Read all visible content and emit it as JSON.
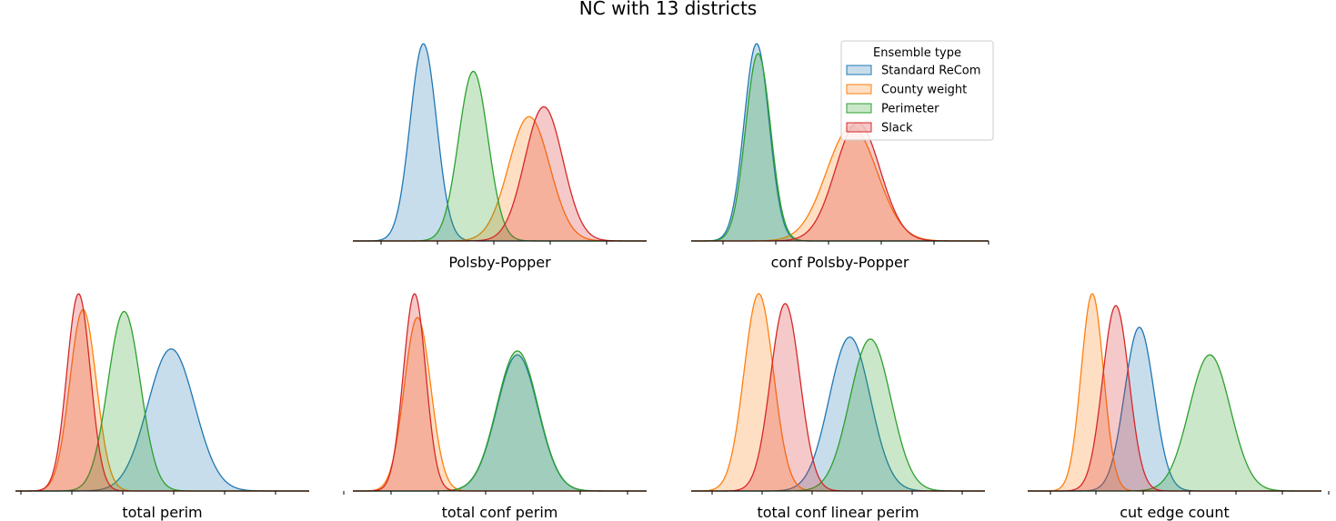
{
  "figure": {
    "title": "NC with 13 districts"
  },
  "legend": {
    "title": "Ensemble type",
    "entries": [
      "Standard ReCom",
      "County weight",
      "Perimeter",
      "Slack"
    ],
    "placement": "top-right of conf Polsby-Popper panel"
  },
  "colors": {
    "Standard ReCom": "#1f77b4",
    "County weight": "#ff7f0e",
    "Perimeter": "#2ca02c",
    "Slack": "#d62728"
  },
  "chart_data": [
    {
      "type": "area",
      "kind": "kde",
      "xlabel": "Polsby-Popper",
      "xlim": [
        0,
        1
      ],
      "yticks": "none",
      "xticklabels": "none",
      "series": [
        {
          "name": "Standard ReCom",
          "peaks": [
            {
              "mu": 0.24,
              "sigma": 0.045,
              "amp": 1.0
            }
          ]
        },
        {
          "name": "Perimeter",
          "peaks": [
            {
              "mu": 0.41,
              "sigma": 0.05,
              "amp": 0.86
            }
          ]
        },
        {
          "name": "County weight",
          "peaks": [
            {
              "mu": 0.6,
              "sigma": 0.07,
              "amp": 0.63
            }
          ]
        },
        {
          "name": "Slack",
          "peaks": [
            {
              "mu": 0.65,
              "sigma": 0.065,
              "amp": 0.68
            }
          ]
        }
      ]
    },
    {
      "type": "area",
      "kind": "kde",
      "xlabel": "conf Polsby-Popper",
      "xlim": [
        0,
        1
      ],
      "yticks": "none",
      "xticklabels": "none",
      "series": [
        {
          "name": "Standard ReCom",
          "peaks": [
            {
              "mu": 0.22,
              "sigma": 0.042,
              "amp": 1.0
            }
          ]
        },
        {
          "name": "Perimeter",
          "peaks": [
            {
              "mu": 0.225,
              "sigma": 0.042,
              "amp": 0.95
            }
          ]
        },
        {
          "name": "County weight",
          "peaks": [
            {
              "mu": 0.54,
              "sigma": 0.085,
              "amp": 0.58
            }
          ]
        },
        {
          "name": "Slack",
          "peaks": [
            {
              "mu": 0.56,
              "sigma": 0.075,
              "amp": 0.6
            }
          ]
        }
      ]
    },
    {
      "type": "area",
      "kind": "kde",
      "xlabel": "total perim",
      "xlim": [
        0,
        1
      ],
      "yticks": "none",
      "xticklabels": "none",
      "series": [
        {
          "name": "Standard ReCom",
          "peaks": [
            {
              "mu": 0.53,
              "sigma": 0.08,
              "amp": 0.72
            }
          ]
        },
        {
          "name": "Perimeter",
          "peaks": [
            {
              "mu": 0.37,
              "sigma": 0.055,
              "amp": 0.91
            }
          ]
        },
        {
          "name": "County weight",
          "peaks": [
            {
              "mu": 0.23,
              "sigma": 0.045,
              "amp": 0.92
            }
          ]
        },
        {
          "name": "Slack",
          "peaks": [
            {
              "mu": 0.215,
              "sigma": 0.04,
              "amp": 1.0
            }
          ]
        }
      ]
    },
    {
      "type": "area",
      "kind": "kde",
      "xlabel": "total conf perim",
      "xlim": [
        0,
        1
      ],
      "yticks": "none",
      "xticklabels": "none",
      "series": [
        {
          "name": "Standard ReCom",
          "peaks": [
            {
              "mu": 0.56,
              "sigma": 0.07,
              "amp": 0.69
            }
          ]
        },
        {
          "name": "Perimeter",
          "peaks": [
            {
              "mu": 0.56,
              "sigma": 0.07,
              "amp": 0.71
            }
          ]
        },
        {
          "name": "County weight",
          "peaks": [
            {
              "mu": 0.22,
              "sigma": 0.045,
              "amp": 0.88
            }
          ]
        },
        {
          "name": "Slack",
          "peaks": [
            {
              "mu": 0.21,
              "sigma": 0.038,
              "amp": 1.0
            }
          ]
        }
      ]
    },
    {
      "type": "area",
      "kind": "kde",
      "xlabel": "total conf linear perim",
      "xlim": [
        0,
        1
      ],
      "yticks": "none",
      "xticklabels": "none",
      "series": [
        {
          "name": "Standard ReCom",
          "peaks": [
            {
              "mu": 0.54,
              "sigma": 0.07,
              "amp": 0.78
            }
          ]
        },
        {
          "name": "Perimeter",
          "peaks": [
            {
              "mu": 0.61,
              "sigma": 0.07,
              "amp": 0.77
            }
          ]
        },
        {
          "name": "County weight",
          "peaks": [
            {
              "mu": 0.23,
              "sigma": 0.05,
              "amp": 1.0
            }
          ]
        },
        {
          "name": "Slack",
          "peaks": [
            {
              "mu": 0.32,
              "sigma": 0.05,
              "amp": 0.95
            }
          ]
        }
      ]
    },
    {
      "type": "area",
      "kind": "kde",
      "xlabel": "cut edge count",
      "xlim": [
        0,
        1
      ],
      "yticks": "none",
      "xticklabels": "none",
      "series": [
        {
          "name": "Standard ReCom",
          "peaks": [
            {
              "mu": 0.38,
              "sigma": 0.05,
              "amp": 0.83
            }
          ]
        },
        {
          "name": "Perimeter",
          "peaks": [
            {
              "mu": 0.62,
              "sigma": 0.07,
              "amp": 0.69
            }
          ]
        },
        {
          "name": "County weight",
          "peaks": [
            {
              "mu": 0.22,
              "sigma": 0.038,
              "amp": 1.0
            }
          ]
        },
        {
          "name": "Slack",
          "peaks": [
            {
              "mu": 0.3,
              "sigma": 0.045,
              "amp": 0.94
            }
          ]
        }
      ]
    }
  ]
}
